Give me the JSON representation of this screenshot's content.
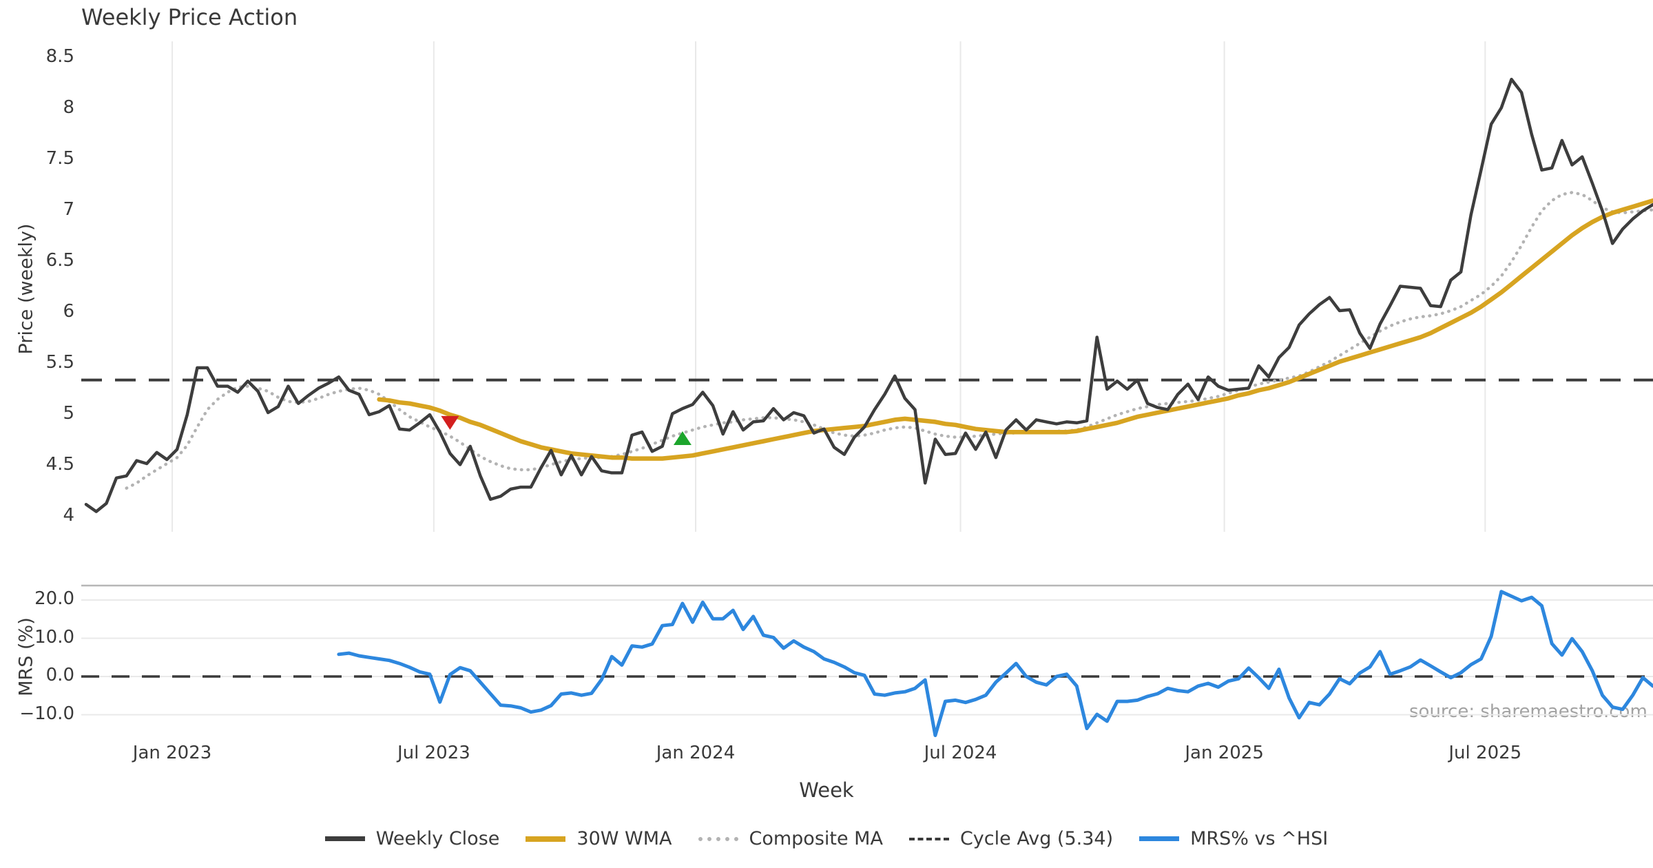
{
  "title": "Weekly Price Action",
  "source": "source: sharemaestro.com",
  "colors": {
    "background": "#ffffff",
    "weekly_close": "#3d3d3d",
    "wma_30w": "#d7a421",
    "composite_ma": "#b3b3b3",
    "cycle_avg": "#3a3a3a",
    "mrs": "#2d87de",
    "sell_marker": "#d31f1f",
    "buy_marker": "#1ca52c",
    "grid": "#e9e9e9",
    "panel_spine": "#b6b6b6",
    "text": "#3a3a3a",
    "muted_text": "#a2a2a2"
  },
  "axes": {
    "price": {
      "label": "Price (weekly)",
      "tick_labels": [
        "8.5",
        "8",
        "7.5",
        "7",
        "6.5",
        "6",
        "5.5",
        "5",
        "4.5",
        "4"
      ],
      "tick_values": [
        8.5,
        8,
        7.5,
        7,
        6.5,
        6,
        5.5,
        5,
        4.5,
        4
      ]
    },
    "mrs": {
      "label": "MRS (%)",
      "tick_labels": [
        "20.0",
        "10.0",
        "0.0",
        "−10.0"
      ],
      "tick_values": [
        20,
        10,
        0,
        -10
      ]
    },
    "x": {
      "label": "Week",
      "tick_labels": [
        "Jan 2023",
        "Jul 2023",
        "Jan 2024",
        "Jul 2024",
        "Jan 2025",
        "Jul 2025"
      ],
      "tick_week_index": [
        8.52,
        34.4,
        60.3,
        86.5,
        112.6,
        138.4
      ]
    }
  },
  "legend": {
    "items": [
      {
        "label": "Weekly Close",
        "style": "solid",
        "color": "#3d3d3d"
      },
      {
        "label": "30W WMA",
        "style": "solid",
        "color": "#d7a421"
      },
      {
        "label": "Composite MA",
        "style": "dotted",
        "color": "#b3b3b3"
      },
      {
        "label": "Cycle Avg (5.34)",
        "style": "dashed",
        "color": "#3a3a3a"
      },
      {
        "label": "MRS% vs ^HSI",
        "style": "solid",
        "color": "#2d87de"
      }
    ]
  },
  "chart_data": [
    {
      "type": "line",
      "panel": "price",
      "title": "Weekly Price Action",
      "xlabel": "Week",
      "ylabel": "Price (weekly)",
      "x_unit": "weeks, Nov 2022 – Nov 2025",
      "ylim": [
        3.75,
        8.65
      ],
      "grid": "vertical-only",
      "cycle_avg_value": 5.34,
      "series": [
        {
          "name": "Weekly Close",
          "start_week_index": 0,
          "values": [
            4.12,
            4.05,
            4.13,
            4.38,
            4.4,
            4.55,
            4.52,
            4.63,
            4.56,
            4.66,
            5.0,
            5.46,
            5.46,
            5.28,
            5.28,
            5.22,
            5.33,
            5.23,
            5.02,
            5.08,
            5.28,
            5.11,
            5.19,
            5.26,
            5.31,
            5.37,
            5.24,
            5.2,
            5.0,
            5.03,
            5.09,
            4.86,
            4.85,
            4.92,
            5.0,
            4.83,
            4.62,
            4.51,
            4.69,
            4.4,
            4.17,
            4.2,
            4.27,
            4.29,
            4.29,
            4.48,
            4.65,
            4.41,
            4.6,
            4.41,
            4.59,
            4.45,
            4.43,
            4.43,
            4.8,
            4.83,
            4.64,
            4.69,
            5.01,
            5.06,
            5.1,
            5.22,
            5.09,
            4.81,
            5.03,
            4.85,
            4.93,
            4.94,
            5.06,
            4.95,
            5.02,
            4.99,
            4.82,
            4.86,
            4.68,
            4.61,
            4.78,
            4.88,
            5.05,
            5.2,
            5.38,
            5.16,
            5.05,
            4.33,
            4.76,
            4.61,
            4.62,
            4.82,
            4.66,
            4.83,
            4.58,
            4.85,
            4.95,
            4.85,
            4.95,
            4.93,
            4.91,
            4.93,
            4.92,
            4.94,
            5.76,
            5.25,
            5.33,
            5.25,
            5.34,
            5.11,
            5.07,
            5.05,
            5.2,
            5.3,
            5.15,
            5.37,
            5.28,
            5.24,
            5.25,
            5.26,
            5.48,
            5.37,
            5.56,
            5.66,
            5.88,
            5.99,
            6.08,
            6.15,
            6.02,
            6.03,
            5.8,
            5.65,
            5.89,
            6.07,
            6.26,
            6.25,
            6.24,
            6.07,
            6.06,
            6.32,
            6.4,
            6.96,
            7.4,
            7.85,
            8.01,
            8.29,
            8.16,
            7.75,
            7.4,
            7.42,
            7.69,
            7.45,
            7.53,
            7.27,
            7.0,
            6.68,
            6.82,
            6.92,
            7.0,
            7.06
          ]
        },
        {
          "name": "30W WMA",
          "start_week_index": 29,
          "values": [
            5.15,
            5.14,
            5.12,
            5.11,
            5.09,
            5.07,
            5.04,
            5.0,
            4.97,
            4.93,
            4.9,
            4.86,
            4.82,
            4.78,
            4.74,
            4.71,
            4.68,
            4.66,
            4.64,
            4.62,
            4.61,
            4.6,
            4.59,
            4.58,
            4.58,
            4.57,
            4.57,
            4.57,
            4.57,
            4.58,
            4.59,
            4.6,
            4.62,
            4.64,
            4.66,
            4.68,
            4.7,
            4.72,
            4.74,
            4.76,
            4.78,
            4.8,
            4.82,
            4.84,
            4.85,
            4.86,
            4.87,
            4.88,
            4.89,
            4.91,
            4.93,
            4.95,
            4.96,
            4.95,
            4.94,
            4.93,
            4.91,
            4.9,
            4.88,
            4.86,
            4.85,
            4.84,
            4.83,
            4.83,
            4.83,
            4.83,
            4.83,
            4.83,
            4.83,
            4.84,
            4.86,
            4.88,
            4.9,
            4.92,
            4.95,
            4.98,
            5.0,
            5.02,
            5.04,
            5.06,
            5.08,
            5.1,
            5.12,
            5.14,
            5.16,
            5.19,
            5.21,
            5.24,
            5.26,
            5.29,
            5.32,
            5.36,
            5.4,
            5.44,
            5.48,
            5.52,
            5.55,
            5.58,
            5.61,
            5.64,
            5.67,
            5.7,
            5.73,
            5.76,
            5.8,
            5.85,
            5.9,
            5.95,
            6.0,
            6.06,
            6.13,
            6.2,
            6.28,
            6.36,
            6.44,
            6.52,
            6.6,
            6.68,
            6.76,
            6.83,
            6.89,
            6.94,
            6.98,
            7.01,
            7.04,
            7.07,
            7.1
          ]
        },
        {
          "name": "Composite MA",
          "start_week_index": 4,
          "values": [
            4.28,
            4.33,
            4.4,
            4.46,
            4.52,
            4.58,
            4.7,
            4.88,
            5.05,
            5.15,
            5.22,
            5.27,
            5.28,
            5.26,
            5.23,
            5.17,
            5.13,
            5.12,
            5.13,
            5.16,
            5.2,
            5.23,
            5.25,
            5.26,
            5.24,
            5.2,
            5.13,
            5.05,
            4.98,
            4.93,
            4.88,
            4.84,
            4.79,
            4.73,
            4.66,
            4.59,
            4.54,
            4.5,
            4.47,
            4.46,
            4.46,
            4.48,
            4.51,
            4.54,
            4.56,
            4.57,
            4.58,
            4.58,
            4.59,
            4.61,
            4.64,
            4.67,
            4.71,
            4.75,
            4.79,
            4.82,
            4.85,
            4.88,
            4.9,
            4.92,
            4.93,
            4.95,
            4.96,
            4.97,
            4.97,
            4.96,
            4.95,
            4.93,
            4.9,
            4.86,
            4.82,
            4.8,
            4.79,
            4.8,
            4.82,
            4.85,
            4.87,
            4.88,
            4.87,
            4.84,
            4.81,
            4.79,
            4.78,
            4.78,
            4.79,
            4.8,
            4.81,
            4.82,
            4.82,
            4.83,
            4.83,
            4.83,
            4.84,
            4.84,
            4.85,
            4.88,
            4.92,
            4.96,
            5.0,
            5.03,
            5.06,
            5.08,
            5.1,
            5.11,
            5.12,
            5.13,
            5.14,
            5.16,
            5.18,
            5.21,
            5.24,
            5.27,
            5.3,
            5.32,
            5.34,
            5.36,
            5.38,
            5.42,
            5.47,
            5.52,
            5.58,
            5.64,
            5.7,
            5.76,
            5.82,
            5.87,
            5.91,
            5.94,
            5.96,
            5.97,
            5.99,
            6.02,
            6.06,
            6.12,
            6.18,
            6.26,
            6.36,
            6.5,
            6.66,
            6.84,
            7.0,
            7.1,
            7.16,
            7.18,
            7.16,
            7.1,
            7.03,
            6.99,
            6.98,
            6.99,
            7.0,
            7.01
          ]
        }
      ],
      "markers": [
        {
          "name": "sell-signal",
          "shape": "triangle-down",
          "week_index": 36,
          "price": 4.92,
          "color": "#d31f1f"
        },
        {
          "name": "buy-signal",
          "shape": "triangle-up",
          "week_index": 59,
          "price": 4.77,
          "color": "#1ca52c"
        }
      ]
    },
    {
      "type": "line",
      "panel": "mrs",
      "ylabel": "MRS (%)",
      "ylim": [
        -15.5,
        23.8
      ],
      "grid": "horizontal-only",
      "zero_line": 0,
      "series": [
        {
          "name": "MRS% vs ^HSI",
          "start_week_index": 25,
          "values": [
            5.8,
            6.1,
            5.4,
            5.0,
            4.6,
            4.2,
            3.4,
            2.4,
            1.2,
            0.6,
            -6.7,
            0.5,
            2.3,
            1.5,
            -1.5,
            -4.5,
            -7.5,
            -7.7,
            -8.2,
            -9.3,
            -8.8,
            -7.6,
            -4.6,
            -4.3,
            -4.9,
            -4.4,
            -0.8,
            5.2,
            3.0,
            8.0,
            7.7,
            8.5,
            13.3,
            13.6,
            19.1,
            14.2,
            19.4,
            15.1,
            15.1,
            17.3,
            12.3,
            15.7,
            10.8,
            10.2,
            7.4,
            9.3,
            7.7,
            6.5,
            4.6,
            3.7,
            2.5,
            1.0,
            0.3,
            -4.6,
            -4.9,
            -4.3,
            -4.0,
            -3.1,
            -0.9,
            -15.4,
            -6.5,
            -6.2,
            -6.8,
            -6.0,
            -4.9,
            -1.5,
            0.9,
            3.4,
            0.0,
            -1.5,
            -2.2,
            0.0,
            0.6,
            -2.5,
            -13.6,
            -9.9,
            -11.7,
            -6.5,
            -6.5,
            -6.2,
            -5.2,
            -4.5,
            -3.1,
            -3.7,
            -4.0,
            -2.5,
            -1.8,
            -2.8,
            -1.2,
            -0.6,
            2.2,
            -0.3,
            -3.1,
            1.9,
            -5.6,
            -10.8,
            -6.8,
            -7.4,
            -4.6,
            -0.6,
            -1.9,
            0.9,
            2.5,
            6.5,
            0.6,
            1.5,
            2.5,
            4.3,
            2.8,
            1.2,
            -0.3,
            1.0,
            3.1,
            4.6,
            10.5,
            22.2,
            21.0,
            19.8,
            20.7,
            18.5,
            8.6,
            5.6,
            9.9,
            6.5,
            1.5,
            -4.9,
            -8.0,
            -8.6,
            -4.9,
            -0.3,
            -2.5
          ]
        }
      ]
    }
  ]
}
